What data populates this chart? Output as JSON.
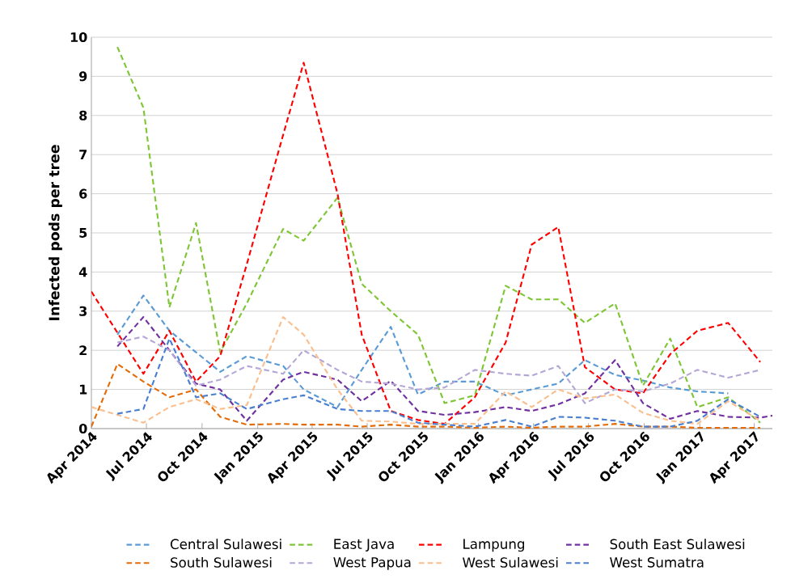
{
  "chart_data": {
    "type": "line",
    "ylabel": "Infected pods per tree",
    "x": [
      "2014-04-01",
      "2014-05-14",
      "2014-06-26",
      "2014-08-08",
      "2014-09-21",
      "2014-10-31",
      "2014-12-14",
      "2015-02-12",
      "2015-03-18",
      "2015-05-13",
      "2015-06-22",
      "2015-08-09",
      "2015-09-23",
      "2015-11-06",
      "2015-12-26",
      "2016-02-15",
      "2016-03-29",
      "2016-05-12",
      "2016-06-25",
      "2016-08-14",
      "2016-09-29",
      "2016-11-13",
      "2016-12-28",
      "2017-02-17",
      "2017-04-11",
      "2017-05-01"
    ],
    "series": [
      {
        "name": "Central Sulawesi",
        "color": "#5b9bd5",
        "values": [
          null,
          2.4,
          3.4,
          2.5,
          1.95,
          1.45,
          1.85,
          1.6,
          1.0,
          0.55,
          1.5,
          2.6,
          0.87,
          1.2,
          1.2,
          0.85,
          1.0,
          1.15,
          1.75,
          1.37,
          1.23,
          1.05,
          0.95,
          0.9,
          null,
          null
        ]
      },
      {
        "name": "East Java",
        "color": "#7ec636",
        "values": [
          null,
          9.75,
          8.2,
          3.1,
          5.25,
          1.95,
          3.2,
          5.1,
          4.8,
          5.9,
          3.7,
          3.0,
          2.4,
          0.65,
          0.85,
          3.65,
          3.3,
          3.3,
          2.7,
          3.2,
          1.1,
          2.3,
          0.55,
          0.8,
          0.15,
          null
        ]
      },
      {
        "name": "Lampung",
        "color": "#ff0000",
        "values": [
          3.5,
          2.45,
          1.4,
          2.5,
          1.2,
          1.85,
          4.2,
          7.5,
          9.35,
          6.0,
          2.4,
          0.45,
          0.22,
          0.12,
          0.8,
          2.2,
          4.7,
          5.15,
          1.57,
          1.0,
          0.9,
          1.9,
          2.5,
          2.7,
          1.7,
          null
        ]
      },
      {
        "name": "South East Sulawesi",
        "color": "#7030a0",
        "values": [
          null,
          2.1,
          2.85,
          2.0,
          1.15,
          1.0,
          0.2,
          1.25,
          1.45,
          1.25,
          0.7,
          1.22,
          0.45,
          0.35,
          0.42,
          0.55,
          0.45,
          0.62,
          0.9,
          1.75,
          0.65,
          0.25,
          0.45,
          0.3,
          0.28,
          0.33
        ]
      },
      {
        "name": "South Sulawesi",
        "color": "#e36c0a",
        "values": [
          0.05,
          1.65,
          1.2,
          0.8,
          1.0,
          0.3,
          0.1,
          0.12,
          0.1,
          0.1,
          0.05,
          0.1,
          0.05,
          0.05,
          0.02,
          0.05,
          0.02,
          0.05,
          0.05,
          0.12,
          0.05,
          0.05,
          0.02,
          0.02,
          0.02,
          null
        ]
      },
      {
        "name": "West Papua",
        "color": "#b4a7d6",
        "values": [
          null,
          2.2,
          2.35,
          2.0,
          1.1,
          1.25,
          1.6,
          1.4,
          2.0,
          1.5,
          1.2,
          1.15,
          1.0,
          1.05,
          1.5,
          1.4,
          1.35,
          1.6,
          0.65,
          1.0,
          0.95,
          1.15,
          1.5,
          1.3,
          1.5,
          null
        ]
      },
      {
        "name": "West Sulawesi",
        "color": "#f9bf8f",
        "values": [
          0.55,
          0.35,
          0.15,
          0.55,
          0.75,
          0.5,
          0.6,
          2.85,
          2.4,
          1.0,
          0.2,
          0.18,
          0.12,
          0.12,
          0.12,
          0.95,
          0.55,
          1.0,
          0.77,
          0.87,
          0.4,
          0.2,
          0.12,
          0.7,
          0.2,
          null
        ]
      },
      {
        "name": "West Sumatra",
        "color": "#4a7fd0",
        "values": [
          null,
          0.38,
          0.5,
          2.3,
          0.8,
          0.9,
          0.5,
          0.75,
          0.85,
          0.5,
          0.45,
          0.45,
          0.15,
          0.1,
          0.05,
          0.22,
          0.05,
          0.3,
          0.28,
          0.2,
          0.05,
          0.05,
          0.2,
          0.75,
          0.3,
          null
        ]
      }
    ],
    "xlim": [
      "2014-04-01",
      "2017-05-01"
    ],
    "xticks": [
      {
        "value": "2014-04-01",
        "label": "Apr 2014"
      },
      {
        "value": "2014-07-01",
        "label": "Jul 2014"
      },
      {
        "value": "2014-10-01",
        "label": "Oct 2014"
      },
      {
        "value": "2015-01-01",
        "label": "Jan 2015"
      },
      {
        "value": "2015-04-01",
        "label": "Apr 2015"
      },
      {
        "value": "2015-07-01",
        "label": "Jul 2015"
      },
      {
        "value": "2015-10-01",
        "label": "Oct 2015"
      },
      {
        "value": "2016-01-01",
        "label": "Jan 2016"
      },
      {
        "value": "2016-04-01",
        "label": "Apr 2016"
      },
      {
        "value": "2016-07-01",
        "label": "Jul 2016"
      },
      {
        "value": "2016-10-01",
        "label": "Oct 2016"
      },
      {
        "value": "2017-01-01",
        "label": "Jan 2017"
      },
      {
        "value": "2017-04-01",
        "label": "Apr 2017"
      }
    ],
    "ylim": [
      0,
      10
    ],
    "yticks": [
      0,
      1,
      2,
      3,
      4,
      5,
      6,
      7,
      8,
      9,
      10
    ],
    "grid": "y",
    "legend": "bottom",
    "line_style": "dashed",
    "marker": "none"
  }
}
